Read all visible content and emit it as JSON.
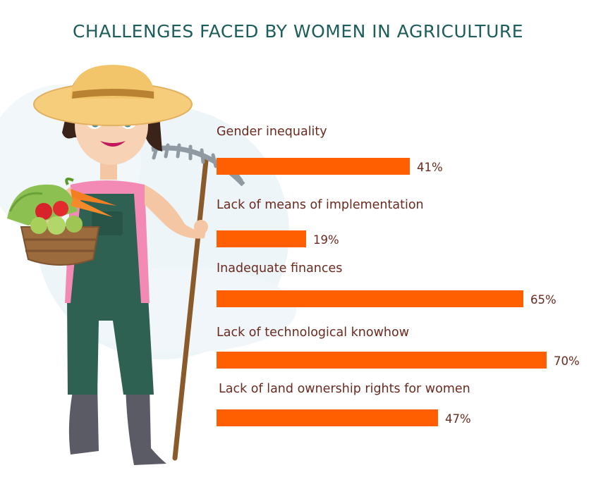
{
  "colors": {
    "title": "#1d5e5a",
    "bar": "#ff5f00",
    "text": "#6b2a1f",
    "background_shape": "#eaf3f7"
  },
  "illustration": {
    "icon": "woman-farmer-with-basket-and-rake-illustration"
  },
  "chart_data": {
    "type": "bar",
    "orientation": "horizontal",
    "title": "CHALLENGES FACED BY WOMEN IN AGRICULTURE",
    "categories": [
      "Gender inequality",
      "Lack of means of implementation",
      "Inadequate finances",
      "Lack of technological knowhow",
      "Lack of land ownership rights for women"
    ],
    "values": [
      41,
      19,
      65,
      70,
      47
    ],
    "value_labels": [
      "41%",
      "19%",
      "65%",
      "70%",
      "47%"
    ],
    "unit": "%",
    "xlim": [
      0,
      70
    ],
    "grid": false,
    "legend": "none"
  }
}
